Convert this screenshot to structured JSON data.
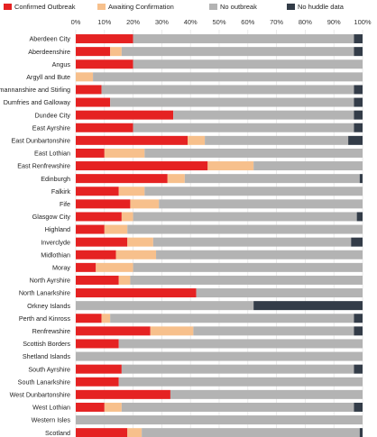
{
  "chart_data": {
    "type": "bar",
    "stacked": true,
    "orientation": "horizontal",
    "title": "",
    "xlabel": "",
    "ylabel": "",
    "xlim": [
      0,
      100
    ],
    "x_ticks": [
      "0%",
      "10%",
      "20%",
      "30%",
      "40%",
      "50%",
      "60%",
      "70%",
      "80%",
      "90%",
      "100%"
    ],
    "grid": true,
    "legend_position": "top",
    "categories": [
      "Aberdeen City",
      "Aberdeenshire",
      "Angus",
      "Argyll and Bute",
      "Clackmannanshire and Stirling",
      "Dumfries and Galloway",
      "Dundee City",
      "East Ayrshire",
      "East Dunbartonshire",
      "East Lothian",
      "East Renfrewshire",
      "Edinburgh",
      "Falkirk",
      "Fife",
      "Glasgow City",
      "Highland",
      "Inverclyde",
      "Midlothian",
      "Moray",
      "North Ayrshire",
      "North Lanarkshire",
      "Orkney Islands",
      "Perth and Kinross",
      "Renfrewshire",
      "Scottish Borders",
      "Shetland Islands",
      "South Ayrshire",
      "South Lanarkshire",
      "West Dunbartonshire",
      "West Lothian",
      "Western Isles",
      "Scotland"
    ],
    "series": [
      {
        "name": "Confirmed Outbreak",
        "color": "#e52222",
        "values": [
          20,
          12,
          20,
          0,
          9,
          12,
          34,
          20,
          39,
          10,
          46,
          32,
          15,
          19,
          16,
          10,
          18,
          14,
          7,
          15,
          42,
          0,
          9,
          26,
          15,
          0,
          16,
          15,
          33,
          10,
          0,
          18
        ]
      },
      {
        "name": "Awaiting Confirmation",
        "color": "#f7c08c",
        "values": [
          0,
          4,
          0,
          6,
          0,
          0,
          0,
          0,
          6,
          14,
          16,
          6,
          9,
          10,
          4,
          8,
          9,
          14,
          13,
          4,
          0,
          0,
          3,
          15,
          0,
          0,
          0,
          0,
          0,
          6,
          0,
          5
        ]
      },
      {
        "name": "No outbreak",
        "color": "#b3b3b3",
        "values": [
          77,
          81,
          80,
          94,
          88,
          85,
          63,
          77,
          50,
          76,
          38,
          61,
          76,
          71,
          78,
          82,
          69,
          72,
          80,
          81,
          58,
          62,
          85,
          56,
          85,
          100,
          81,
          85,
          67,
          81,
          100,
          76
        ]
      },
      {
        "name": "No huddle data",
        "color": "#333c48",
        "values": [
          3,
          3,
          0,
          0,
          3,
          3,
          3,
          3,
          5,
          0,
          0,
          1,
          0,
          0,
          2,
          0,
          4,
          0,
          0,
          0,
          0,
          38,
          3,
          3,
          0,
          0,
          3,
          0,
          0,
          3,
          0,
          1
        ]
      }
    ]
  }
}
